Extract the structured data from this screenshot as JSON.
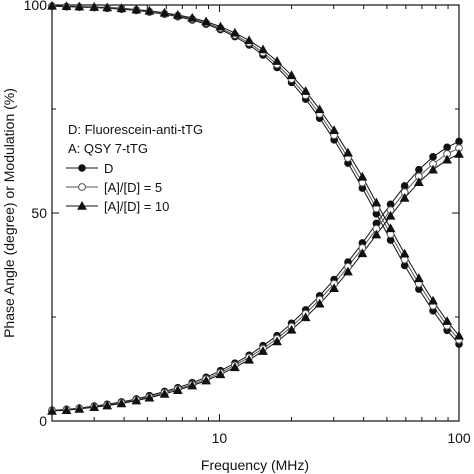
{
  "chart_data": {
    "type": "scatter",
    "title": "",
    "xlabel": "Frequency (MHz)",
    "ylabel": "Phase Angle (degree) or Modulation (%)",
    "xscale": "log",
    "xlim": [
      2,
      100
    ],
    "ylim": [
      0,
      100
    ],
    "x_ticks": [
      10,
      100
    ],
    "x_tick_labels": [
      "10",
      "100"
    ],
    "y_ticks": [
      0,
      50,
      100
    ],
    "y_tick_labels": [
      "0",
      "50",
      "100"
    ],
    "grid": false,
    "legend_position": "center-left",
    "legend_header": [
      "D: Fluorescein-anti-tTG",
      "A: QSY 7-tTG"
    ],
    "x": [
      2.0,
      2.3,
      2.6,
      3.0,
      3.4,
      3.9,
      4.5,
      5.1,
      5.9,
      6.7,
      7.7,
      8.8,
      10.1,
      11.6,
      13.3,
      15.2,
      17.4,
      20.0,
      22.9,
      26.2,
      30.1,
      34.4,
      39.5,
      45.2,
      51.8,
      59.3,
      68.0,
      77.9,
      89.2,
      100.0
    ],
    "series": [
      {
        "name": "D",
        "marker": "filled-circle",
        "color": "#111111",
        "phase": [
          2.6,
          2.8,
          3.1,
          3.6,
          4.0,
          4.6,
          5.3,
          6.1,
          7.1,
          8.0,
          9.2,
          10.5,
          12.1,
          13.9,
          15.8,
          18.1,
          20.5,
          23.5,
          26.7,
          30.1,
          34.0,
          38.2,
          42.8,
          47.5,
          52.1,
          56.5,
          60.4,
          63.5,
          65.8,
          67.2
        ],
        "modulation": [
          99.7,
          99.6,
          99.5,
          99.4,
          99.2,
          99.0,
          98.7,
          98.3,
          97.8,
          97.2,
          96.4,
          95.4,
          94.1,
          92.4,
          90.4,
          88.0,
          85.0,
          81.4,
          77.4,
          72.8,
          67.6,
          62.0,
          56.0,
          49.8,
          43.5,
          37.4,
          31.7,
          26.5,
          21.8,
          18.5
        ]
      },
      {
        "name": "[A]/[D] = 5",
        "marker": "open-circle",
        "color": "#555555",
        "phase": [
          2.5,
          2.7,
          3.0,
          3.4,
          3.8,
          4.4,
          5.1,
          5.8,
          6.8,
          7.7,
          8.8,
          10.1,
          11.6,
          13.4,
          15.3,
          17.4,
          19.8,
          22.7,
          25.8,
          29.2,
          33.0,
          37.1,
          41.6,
          46.2,
          50.7,
          55.0,
          58.8,
          61.8,
          64.2,
          65.6
        ],
        "modulation": [
          99.7,
          99.6,
          99.5,
          99.4,
          99.3,
          99.1,
          98.8,
          98.4,
          97.9,
          97.4,
          96.6,
          95.7,
          94.4,
          92.8,
          90.9,
          88.6,
          85.7,
          82.2,
          78.3,
          73.8,
          68.7,
          63.2,
          57.3,
          51.1,
          44.9,
          38.8,
          33.0,
          27.7,
          22.9,
          19.5
        ]
      },
      {
        "name": "[A]/[D] = 10",
        "marker": "filled-triangle",
        "color": "#111111",
        "phase": [
          2.4,
          2.6,
          2.9,
          3.3,
          3.7,
          4.2,
          4.9,
          5.6,
          6.5,
          7.4,
          8.5,
          9.7,
          11.2,
          12.9,
          14.7,
          16.8,
          19.1,
          21.9,
          24.9,
          28.2,
          31.9,
          35.9,
          40.3,
          44.8,
          49.3,
          53.6,
          57.4,
          60.4,
          62.8,
          64.2
        ],
        "modulation": [
          99.8,
          99.7,
          99.6,
          99.5,
          99.4,
          99.2,
          98.9,
          98.6,
          98.1,
          97.6,
          96.9,
          96.0,
          94.8,
          93.3,
          91.5,
          89.3,
          86.5,
          83.1,
          79.3,
          74.9,
          69.9,
          64.5,
          58.7,
          52.5,
          46.3,
          40.2,
          34.3,
          28.9,
          24.0,
          20.5
        ]
      }
    ]
  }
}
